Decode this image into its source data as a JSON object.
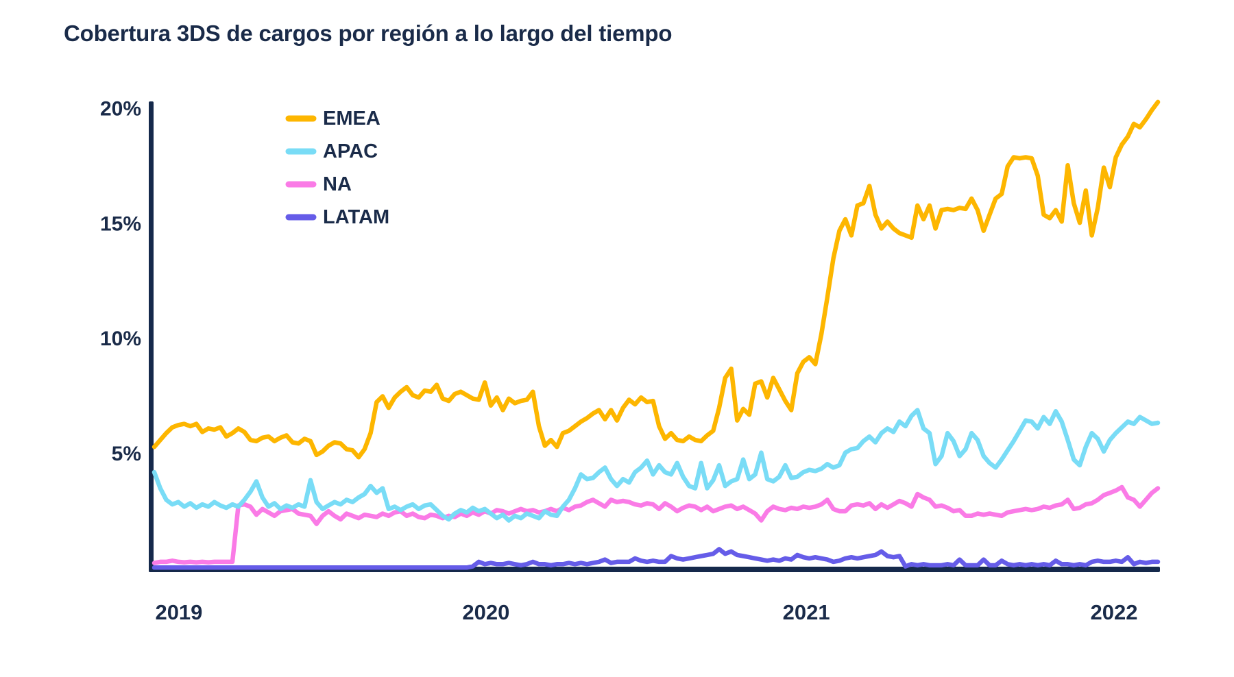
{
  "header": {
    "title": "Cobertura 3DS de cargos por región a lo largo del tiempo"
  },
  "colors": {
    "text": "#1A2B49",
    "axis": "#15294B",
    "background": "#FFFFFF",
    "emea": "#FDB600",
    "apac": "#79DCF6",
    "na": "#FA7BE6",
    "latam": "#655CE8"
  },
  "chart_data": {
    "type": "line",
    "title": "Cobertura 3DS de cargos por región a lo largo del tiempo",
    "xlabel": "",
    "ylabel": "",
    "grid": false,
    "legend_position": "top-left",
    "x_unit": "weekly observations",
    "x_axis": {
      "tick_labels": [
        "2019",
        "2020",
        "2021",
        "2022"
      ],
      "tick_week_index": [
        4.1,
        55.2,
        108.5,
        159.7
      ]
    },
    "y_axis": {
      "ticks": [
        5,
        10,
        15,
        20
      ],
      "tick_labels": [
        "5%",
        "10%",
        "15%",
        "20%"
      ],
      "range": [
        0,
        20.5
      ]
    },
    "series": [
      {
        "name": "EMEA",
        "color": "#FDB600",
        "values": [
          5.3,
          5.6,
          5.9,
          6.15,
          6.25,
          6.3,
          6.2,
          6.3,
          5.95,
          6.1,
          6.05,
          6.15,
          5.75,
          5.9,
          6.1,
          5.95,
          5.6,
          5.55,
          5.7,
          5.75,
          5.55,
          5.7,
          5.8,
          5.5,
          5.45,
          5.65,
          5.55,
          4.95,
          5.1,
          5.35,
          5.5,
          5.45,
          5.2,
          5.15,
          4.85,
          5.2,
          5.9,
          7.25,
          7.5,
          7.0,
          7.45,
          7.7,
          7.9,
          7.55,
          7.45,
          7.75,
          7.7,
          8.0,
          7.4,
          7.3,
          7.6,
          7.7,
          7.55,
          7.4,
          7.35,
          8.1,
          7.1,
          7.45,
          6.9,
          7.4,
          7.2,
          7.3,
          7.35,
          7.7,
          6.2,
          5.35,
          5.6,
          5.3,
          5.9,
          6.0,
          6.2,
          6.4,
          6.55,
          6.75,
          6.9,
          6.5,
          6.9,
          6.45,
          7.0,
          7.35,
          7.15,
          7.45,
          7.25,
          7.3,
          6.2,
          5.65,
          5.9,
          5.6,
          5.55,
          5.75,
          5.6,
          5.55,
          5.8,
          6.0,
          7.0,
          8.3,
          8.7,
          6.45,
          6.95,
          6.7,
          8.05,
          8.15,
          7.45,
          8.3,
          7.8,
          7.3,
          6.9,
          8.5,
          9.0,
          9.2,
          8.9,
          10.2,
          11.8,
          13.5,
          14.7,
          15.2,
          14.5,
          15.8,
          15.9,
          16.65,
          15.4,
          14.8,
          15.1,
          14.8,
          14.6,
          14.5,
          14.4,
          15.8,
          15.2,
          15.8,
          14.8,
          15.6,
          15.65,
          15.6,
          15.7,
          15.65,
          16.1,
          15.6,
          14.7,
          15.4,
          16.1,
          16.3,
          17.5,
          17.9,
          17.85,
          17.9,
          17.85,
          17.1,
          15.4,
          15.25,
          15.6,
          15.1,
          17.55,
          15.9,
          15.05,
          16.45,
          14.5,
          15.7,
          17.45,
          16.6,
          17.9,
          18.45,
          18.8,
          19.35,
          19.2,
          19.55,
          19.95,
          20.3
        ]
      },
      {
        "name": "APAC",
        "color": "#79DCF6",
        "values": [
          4.2,
          3.5,
          3.0,
          2.8,
          2.9,
          2.7,
          2.85,
          2.65,
          2.8,
          2.7,
          2.9,
          2.75,
          2.65,
          2.8,
          2.7,
          3.0,
          3.35,
          3.8,
          3.1,
          2.7,
          2.85,
          2.6,
          2.75,
          2.65,
          2.8,
          2.7,
          3.85,
          2.9,
          2.6,
          2.75,
          2.9,
          2.8,
          3.0,
          2.9,
          3.1,
          3.25,
          3.6,
          3.3,
          3.5,
          2.6,
          2.7,
          2.55,
          2.7,
          2.8,
          2.6,
          2.75,
          2.8,
          2.55,
          2.3,
          2.15,
          2.4,
          2.55,
          2.45,
          2.65,
          2.5,
          2.6,
          2.4,
          2.2,
          2.35,
          2.1,
          2.3,
          2.2,
          2.4,
          2.3,
          2.2,
          2.5,
          2.35,
          2.3,
          2.7,
          3.0,
          3.5,
          4.1,
          3.9,
          3.95,
          4.2,
          4.4,
          3.9,
          3.6,
          3.9,
          3.75,
          4.2,
          4.4,
          4.7,
          4.1,
          4.5,
          4.2,
          4.1,
          4.6,
          4.0,
          3.6,
          3.5,
          4.6,
          3.5,
          3.85,
          4.5,
          3.6,
          3.8,
          3.9,
          4.75,
          3.9,
          4.1,
          5.05,
          3.9,
          3.8,
          4.0,
          4.5,
          3.95,
          4.0,
          4.2,
          4.3,
          4.25,
          4.35,
          4.55,
          4.4,
          4.5,
          5.05,
          5.2,
          5.25,
          5.55,
          5.75,
          5.5,
          5.9,
          6.1,
          5.95,
          6.4,
          6.2,
          6.65,
          6.9,
          6.1,
          5.9,
          4.55,
          4.9,
          5.9,
          5.55,
          4.9,
          5.2,
          5.9,
          5.6,
          4.9,
          4.6,
          4.4,
          4.75,
          5.15,
          5.55,
          6.0,
          6.45,
          6.4,
          6.1,
          6.6,
          6.3,
          6.85,
          6.4,
          5.6,
          4.75,
          4.5,
          5.3,
          5.9,
          5.65,
          5.1,
          5.6,
          5.9,
          6.15,
          6.4,
          6.3,
          6.6,
          6.45,
          6.3,
          6.35
        ]
      },
      {
        "name": "NA",
        "color": "#FA7BE6",
        "values": [
          0.25,
          0.3,
          0.3,
          0.35,
          0.3,
          0.28,
          0.3,
          0.28,
          0.3,
          0.28,
          0.3,
          0.3,
          0.3,
          0.3,
          2.75,
          2.8,
          2.7,
          2.35,
          2.6,
          2.45,
          2.3,
          2.5,
          2.55,
          2.6,
          2.4,
          2.35,
          2.3,
          1.95,
          2.3,
          2.5,
          2.3,
          2.15,
          2.4,
          2.3,
          2.2,
          2.35,
          2.3,
          2.25,
          2.4,
          2.3,
          2.45,
          2.5,
          2.3,
          2.4,
          2.25,
          2.2,
          2.35,
          2.3,
          2.2,
          2.3,
          2.25,
          2.4,
          2.3,
          2.45,
          2.35,
          2.5,
          2.4,
          2.55,
          2.5,
          2.4,
          2.5,
          2.6,
          2.5,
          2.55,
          2.45,
          2.5,
          2.6,
          2.5,
          2.65,
          2.55,
          2.7,
          2.75,
          2.9,
          3.0,
          2.85,
          2.7,
          3.0,
          2.9,
          2.95,
          2.9,
          2.8,
          2.75,
          2.85,
          2.8,
          2.6,
          2.85,
          2.7,
          2.5,
          2.65,
          2.75,
          2.7,
          2.55,
          2.7,
          2.5,
          2.6,
          2.7,
          2.75,
          2.6,
          2.7,
          2.55,
          2.4,
          2.1,
          2.5,
          2.7,
          2.6,
          2.55,
          2.65,
          2.6,
          2.7,
          2.65,
          2.7,
          2.8,
          3.0,
          2.6,
          2.5,
          2.5,
          2.75,
          2.8,
          2.75,
          2.85,
          2.6,
          2.8,
          2.65,
          2.8,
          2.95,
          2.85,
          2.7,
          3.25,
          3.1,
          3.0,
          2.7,
          2.75,
          2.65,
          2.5,
          2.55,
          2.3,
          2.3,
          2.4,
          2.35,
          2.4,
          2.35,
          2.3,
          2.45,
          2.5,
          2.55,
          2.6,
          2.55,
          2.6,
          2.7,
          2.65,
          2.75,
          2.8,
          3.0,
          2.6,
          2.65,
          2.8,
          2.85,
          3.0,
          3.2,
          3.3,
          3.4,
          3.55,
          3.1,
          3.0,
          2.7,
          3.0,
          3.3,
          3.5
        ]
      },
      {
        "name": "LATAM",
        "color": "#655CE8",
        "values": [
          0.05,
          0.05,
          0.05,
          0.05,
          0.05,
          0.05,
          0.05,
          0.05,
          0.05,
          0.05,
          0.05,
          0.05,
          0.05,
          0.05,
          0.05,
          0.05,
          0.05,
          0.05,
          0.05,
          0.05,
          0.05,
          0.05,
          0.05,
          0.05,
          0.05,
          0.05,
          0.05,
          0.05,
          0.05,
          0.05,
          0.05,
          0.05,
          0.05,
          0.05,
          0.05,
          0.05,
          0.05,
          0.05,
          0.05,
          0.05,
          0.05,
          0.05,
          0.05,
          0.05,
          0.05,
          0.05,
          0.05,
          0.05,
          0.05,
          0.05,
          0.05,
          0.05,
          0.05,
          0.1,
          0.3,
          0.2,
          0.25,
          0.2,
          0.2,
          0.25,
          0.2,
          0.15,
          0.2,
          0.3,
          0.2,
          0.2,
          0.15,
          0.2,
          0.2,
          0.25,
          0.2,
          0.25,
          0.2,
          0.25,
          0.3,
          0.4,
          0.25,
          0.3,
          0.3,
          0.3,
          0.45,
          0.35,
          0.3,
          0.35,
          0.3,
          0.3,
          0.55,
          0.45,
          0.4,
          0.45,
          0.5,
          0.55,
          0.6,
          0.65,
          0.85,
          0.65,
          0.75,
          0.6,
          0.55,
          0.5,
          0.45,
          0.4,
          0.35,
          0.4,
          0.35,
          0.45,
          0.4,
          0.6,
          0.5,
          0.45,
          0.5,
          0.45,
          0.4,
          0.3,
          0.35,
          0.45,
          0.5,
          0.45,
          0.5,
          0.55,
          0.6,
          0.75,
          0.55,
          0.5,
          0.55,
          0.1,
          0.2,
          0.15,
          0.2,
          0.15,
          0.15,
          0.15,
          0.2,
          0.15,
          0.4,
          0.15,
          0.15,
          0.15,
          0.4,
          0.15,
          0.15,
          0.35,
          0.2,
          0.15,
          0.2,
          0.15,
          0.2,
          0.15,
          0.2,
          0.15,
          0.35,
          0.2,
          0.2,
          0.15,
          0.2,
          0.15,
          0.3,
          0.35,
          0.3,
          0.3,
          0.35,
          0.3,
          0.5,
          0.2,
          0.3,
          0.25,
          0.3,
          0.3
        ]
      }
    ]
  }
}
